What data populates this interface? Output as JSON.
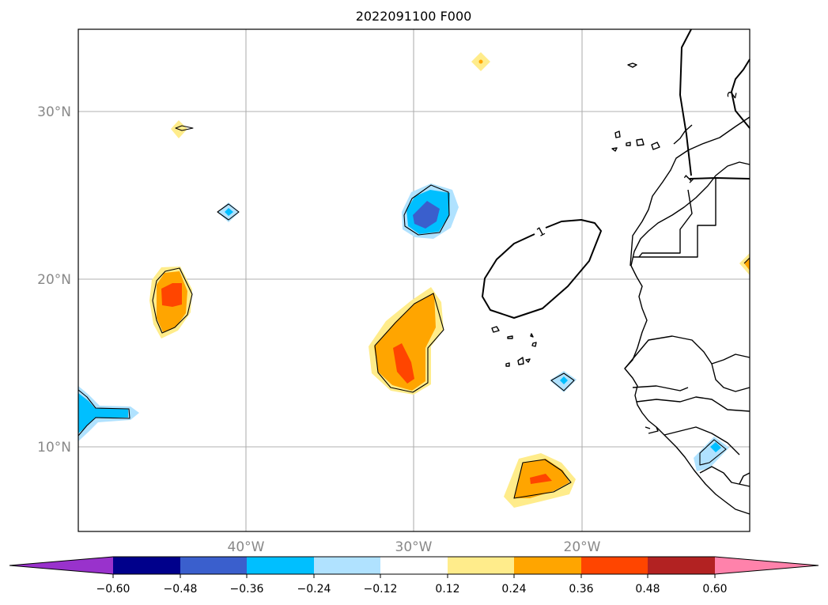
{
  "title": "2022091100 F000",
  "lat_labels": [
    "30°N",
    "20°N",
    "10°N"
  ],
  "lon_labels": [
    "40°W",
    "30°W",
    "20°W"
  ],
  "contour_labels": [
    "1",
    "2",
    "1"
  ],
  "colorbar": {
    "ticks": [
      "−0.60",
      "−0.48",
      "−0.36",
      "−0.24",
      "−0.12",
      "0.12",
      "0.24",
      "0.36",
      "0.48",
      "0.60"
    ],
    "colors": {
      "under": "#9932cc",
      "b1": "#00008b",
      "b2": "#3a5fcd",
      "b3": "#00bfff",
      "b4": "#b0e2ff",
      "b5": "#ffffff",
      "b6": "#ffec8b",
      "b7": "#ffa500",
      "b8": "#ff4500",
      "b9": "#b22222",
      "over": "#ff82ab"
    }
  }
}
